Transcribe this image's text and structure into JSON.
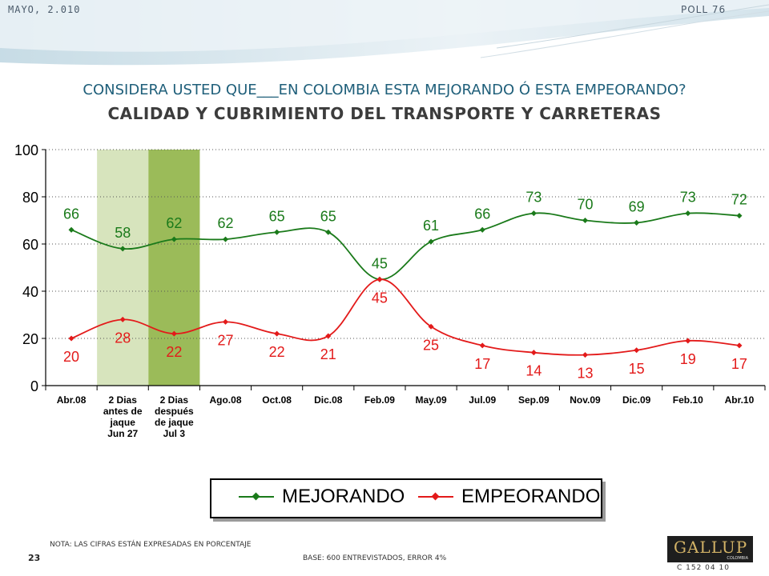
{
  "header": {
    "date": "MAYO, 2.010",
    "poll": "POLL 76",
    "question": "CONSIDERA USTED QUE___EN COLOMBIA ESTA MEJORANDO Ó ESTA EMPEORANDO?",
    "topic": "CALIDAD Y CUBRIMIENTO DEL TRANSPORTE Y CARRETERAS"
  },
  "chart_data": {
    "type": "line",
    "title": "CALIDAD Y CUBRIMIENTO DEL TRANSPORTE Y CARRETERAS",
    "categories": [
      [
        "Abr.08"
      ],
      [
        "2 Dias",
        "antes de",
        "jaque",
        "Jun 27"
      ],
      [
        "2 Dias",
        "después",
        "de jaque",
        "Jul 3"
      ],
      [
        "Ago.08"
      ],
      [
        "Oct.08"
      ],
      [
        "Dic.08"
      ],
      [
        "Feb.09"
      ],
      [
        "May.09"
      ],
      [
        "Jul.09"
      ],
      [
        "Sep.09"
      ],
      [
        "Nov.09"
      ],
      [
        "Dic.09"
      ],
      [
        "Feb.10"
      ],
      [
        "Abr.10"
      ]
    ],
    "yticks": [
      "0",
      "20",
      "40",
      "60",
      "80",
      "100"
    ],
    "ylim": [
      0,
      100
    ],
    "grid": "horizontal-dotted",
    "highlight_bands": [
      {
        "category_index": 1,
        "color": "#d7e4bd"
      },
      {
        "category_index": 2,
        "color": "#9bbb59"
      }
    ],
    "series": [
      {
        "name": "MEJORANDO",
        "color": "#1a7a1a",
        "values": [
          66,
          58,
          62,
          62,
          65,
          65,
          45,
          61,
          66,
          73,
          70,
          69,
          73,
          72
        ]
      },
      {
        "name": "EMPEORANDO",
        "color": "#e31a1a",
        "values": [
          20,
          28,
          22,
          27,
          22,
          21,
          45,
          25,
          17,
          14,
          13,
          15,
          19,
          17
        ]
      }
    ],
    "legend_position": "bottom"
  },
  "footer": {
    "nota": "NOTA: LAS CIFRAS ESTÁN EXPRESADAS EN PORCENTAJE",
    "page": "23",
    "base": "BASE: 600 ENTREVISTADOS, ERROR 4%",
    "logo": "GALLUP",
    "logo_sub": "COLOMBIA",
    "code": "C 152 04 10"
  }
}
